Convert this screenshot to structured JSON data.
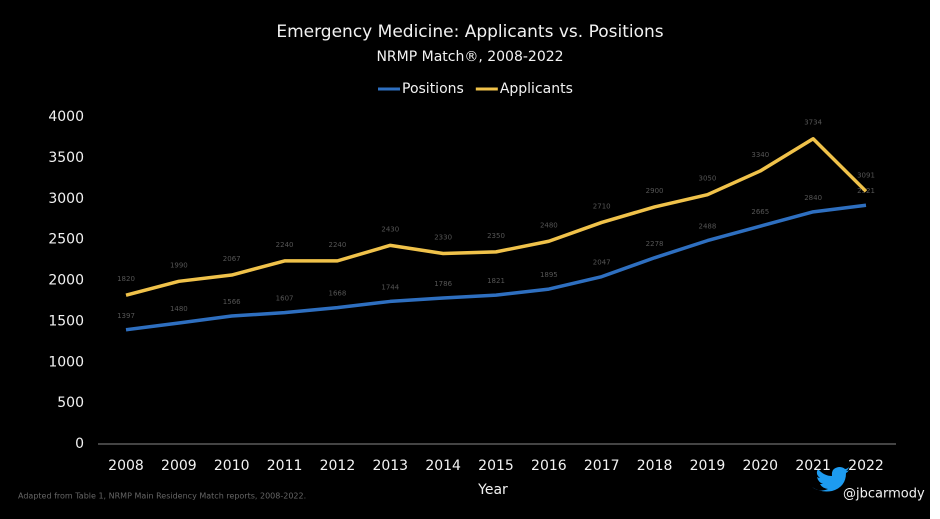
{
  "chart_data": {
    "type": "line",
    "title": "Emergency Medicine: Applicants vs. Positions",
    "subtitle": "NRMP Match®, 2008-2022",
    "x_label": "Year",
    "footnote": "Adapted from Table 1, NRMP Main Residency Match reports, 2008-2022.",
    "credit": "@jbcarmody",
    "categories": [
      "2008",
      "2009",
      "2010",
      "2011",
      "2012",
      "2013",
      "2014",
      "2015",
      "2016",
      "2017",
      "2018",
      "2019",
      "2020",
      "2021",
      "2022"
    ],
    "series": [
      {
        "name": "Positions",
        "color": "#2e6fc0",
        "values": [
          1397,
          1480,
          1566,
          1607,
          1668,
          1744,
          1786,
          1821,
          1895,
          2047,
          2278,
          2488,
          2665,
          2840,
          2921
        ]
      },
      {
        "name": "Applicants",
        "color": "#f0c24a",
        "values": [
          1820,
          1990,
          2067,
          2240,
          2240,
          2430,
          2330,
          2350,
          2480,
          2710,
          2900,
          3050,
          3340,
          3734,
          3091
        ]
      }
    ],
    "ylim": [
      0,
      4000
    ],
    "yticks": [
      0,
      500,
      1000,
      1500,
      2000,
      2500,
      3000,
      3500,
      4000
    ],
    "legend": "top",
    "grid": false
  }
}
